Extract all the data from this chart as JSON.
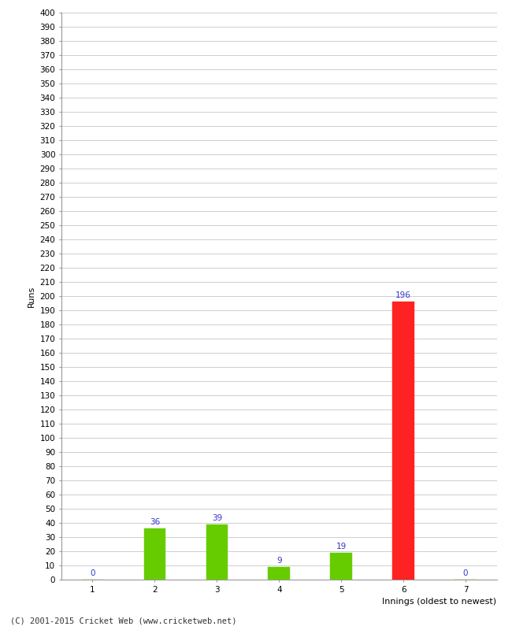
{
  "categories": [
    "1",
    "2",
    "3",
    "4",
    "5",
    "6",
    "7"
  ],
  "values": [
    0,
    36,
    39,
    9,
    19,
    196,
    0
  ],
  "bar_colors": [
    "#66cc00",
    "#66cc00",
    "#66cc00",
    "#66cc00",
    "#66cc00",
    "#ff2222",
    "#66cc00"
  ],
  "xlabel": "Innings (oldest to newest)",
  "ylabel": "Runs",
  "ylim": [
    0,
    400
  ],
  "ytick_step": 10,
  "label_color": "#3333cc",
  "label_fontsize": 7.5,
  "xlabel_fontsize": 8,
  "ylabel_fontsize": 8,
  "tick_fontsize": 7.5,
  "footer": "(C) 2001-2015 Cricket Web (www.cricketweb.net)",
  "footer_fontsize": 7.5,
  "bg_color": "#ffffff",
  "grid_color": "#bbbbbb",
  "bar_width": 0.35
}
